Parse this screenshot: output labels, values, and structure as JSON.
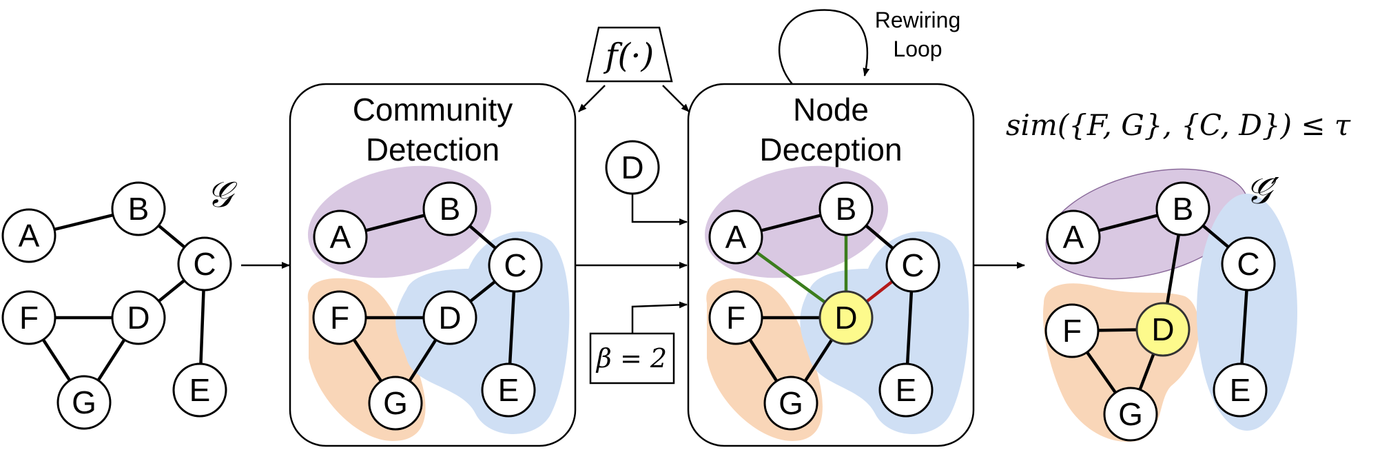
{
  "colors": {
    "purple_community": "#d9c8e2",
    "orange_community": "#f9d6b8",
    "blue_community": "#cfdff4",
    "deceptive_node": "#fdfa8c",
    "added_edge": "#3b7d1d",
    "removed_edge": "#b41a1a"
  },
  "input_graph": {
    "label": "𝒢",
    "nodes": [
      "A",
      "B",
      "C",
      "D",
      "E",
      "F",
      "G"
    ]
  },
  "function_box": {
    "label": "f(·)"
  },
  "community_detection": {
    "title_line1": "Community",
    "title_line2": "Detection",
    "nodes": [
      "A",
      "B",
      "C",
      "D",
      "E",
      "F",
      "G"
    ]
  },
  "target_node": {
    "label": "D"
  },
  "budget": {
    "label": "β = 2"
  },
  "rewiring_loop": {
    "line1": "Rewiring",
    "line2": "Loop"
  },
  "node_deception": {
    "title_line1": "Node",
    "title_line2": "Deception",
    "nodes": [
      "A",
      "B",
      "C",
      "D",
      "E",
      "F",
      "G"
    ]
  },
  "similarity_condition": {
    "text": "sim({F, G}, {C, D}) ≤ τ"
  },
  "output_graph": {
    "label": "𝒢′",
    "nodes": [
      "A",
      "B",
      "C",
      "D",
      "E",
      "F",
      "G"
    ]
  }
}
